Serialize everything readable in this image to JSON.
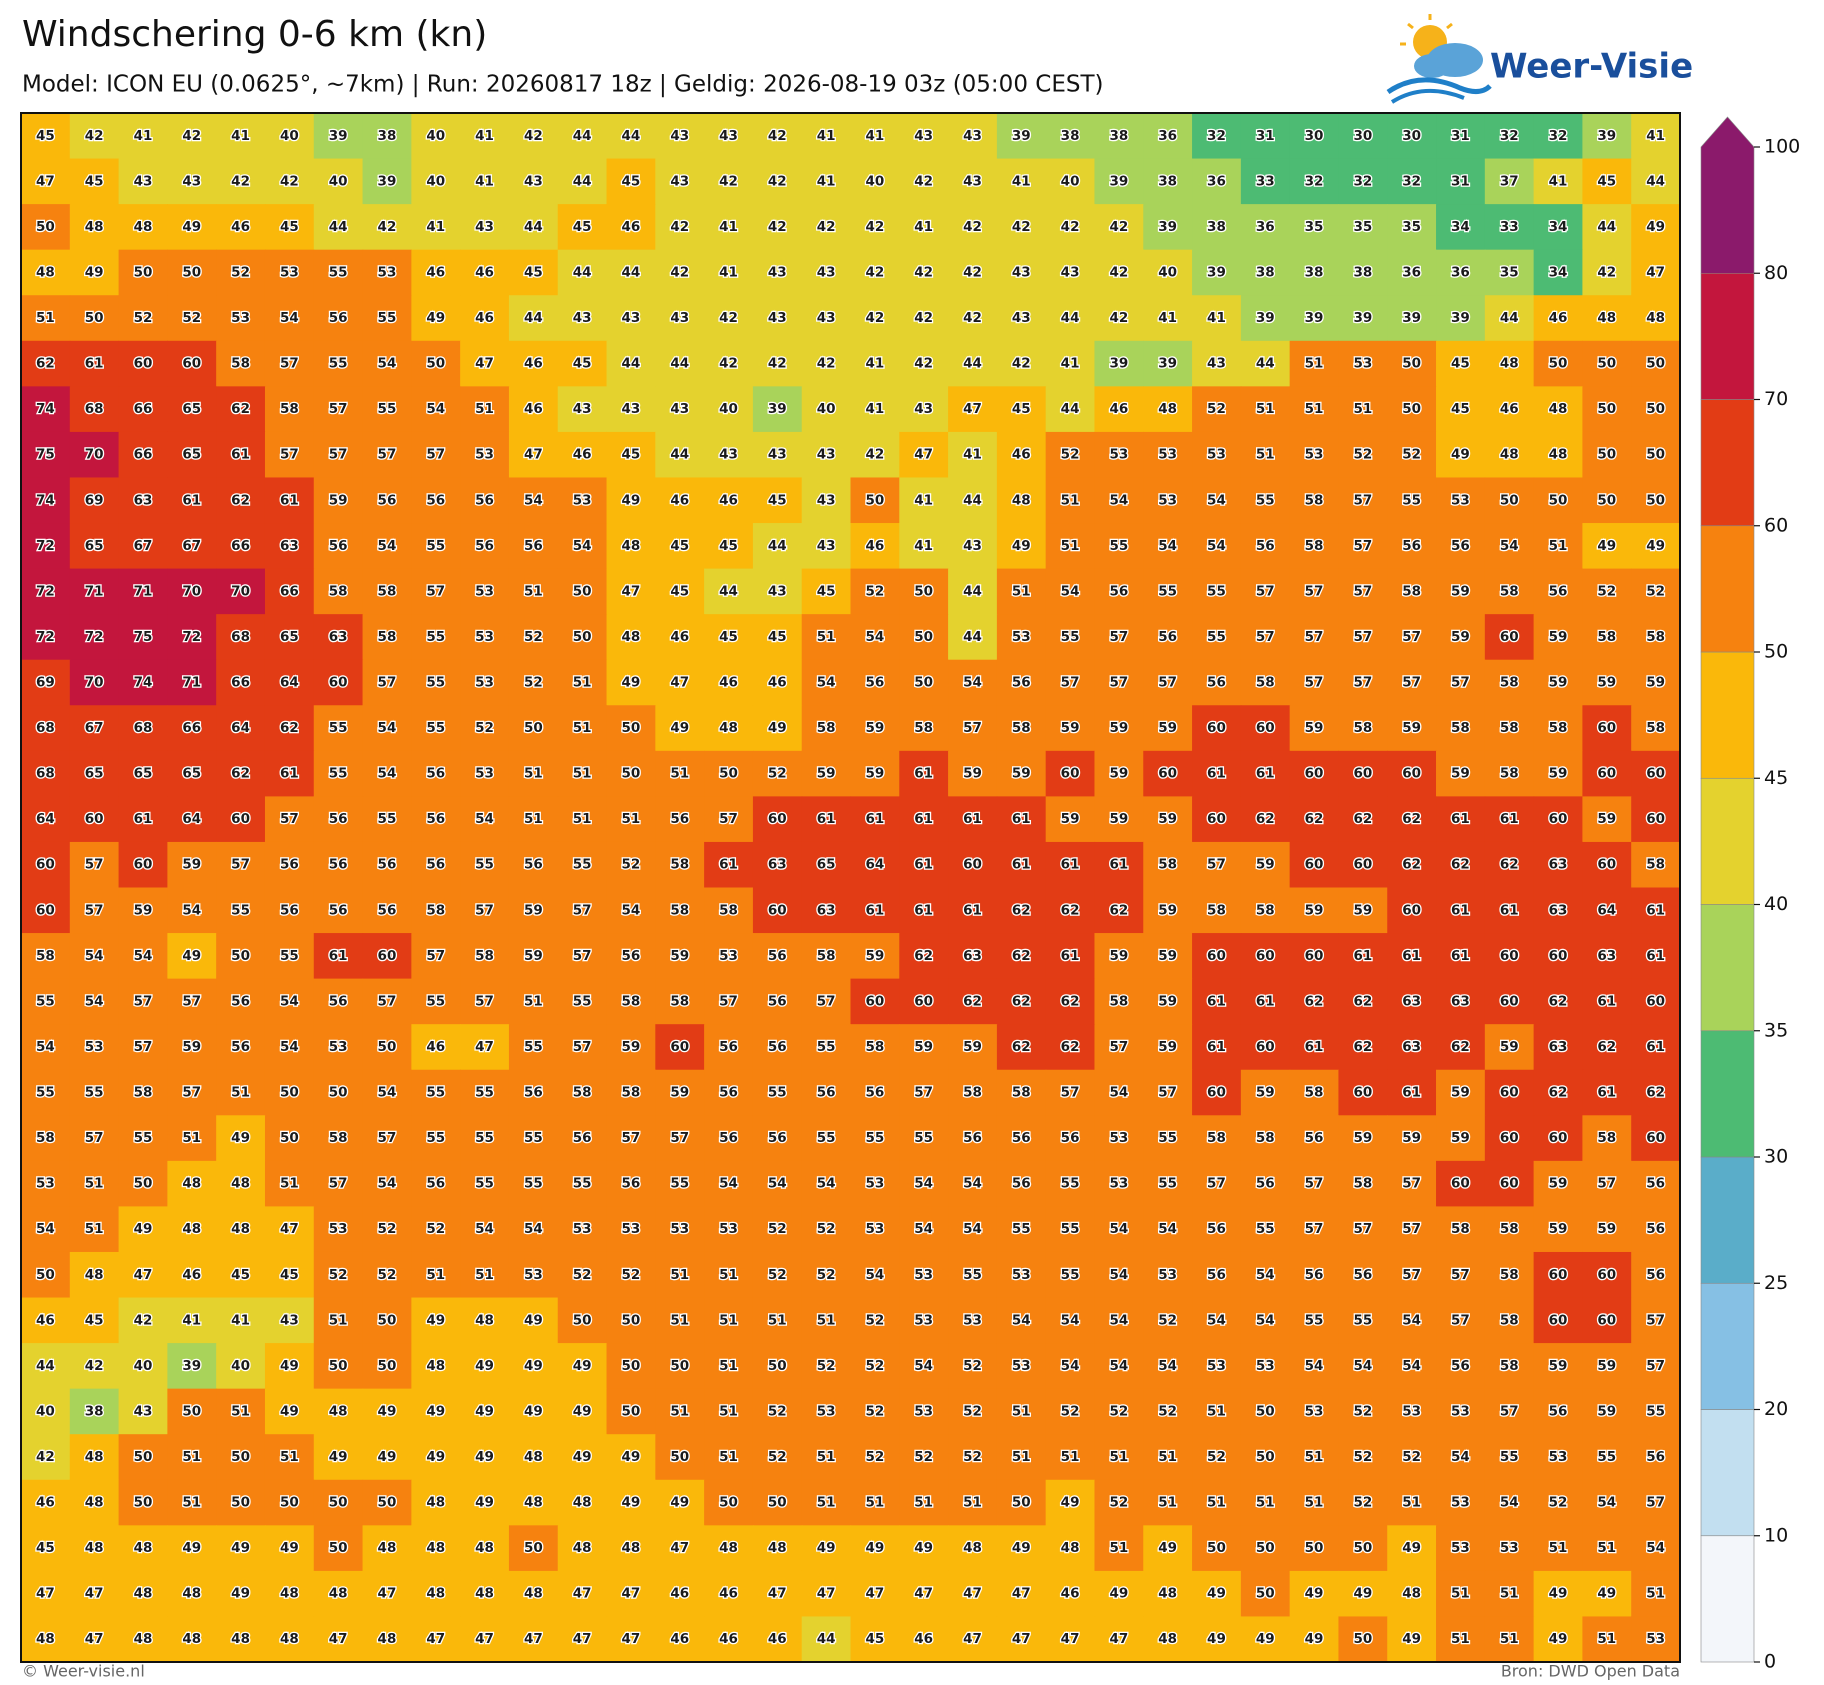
{
  "chart_data": {
    "type": "heatmap",
    "title": "Windschering 0-6 km (kn)",
    "subtitle": "Model: ICON EU (0.0625°, ~7km)  |  Run: 20260817 18z  |  Geldig: 2026-08-19 03z (05:00 CEST)",
    "logo_text": "Weer-Visie",
    "credit": "© Weer-visie.nl",
    "source": "Bron: DWD Open Data",
    "levels": [
      0,
      10,
      20,
      25,
      30,
      35,
      40,
      45,
      50,
      60,
      70,
      80,
      100
    ],
    "colors": [
      "#f3f6fa",
      "#c2dff0",
      "#86c0e4",
      "#5aadc9",
      "#4dbb73",
      "#a9d35a",
      "#e4d22e",
      "#fab80a",
      "#f6820f",
      "#e23c15",
      "#c3163d",
      "#8b1a6b"
    ],
    "values": [
      [
        45,
        42,
        41,
        42,
        41,
        40,
        39,
        38,
        40,
        41,
        42,
        44,
        44,
        43,
        43,
        42,
        41,
        41,
        43,
        43,
        39,
        38,
        38,
        36,
        32,
        31,
        30,
        30,
        30,
        31,
        32,
        32,
        39,
        41
      ],
      [
        47,
        45,
        43,
        43,
        42,
        42,
        40,
        39,
        40,
        41,
        43,
        44,
        45,
        43,
        42,
        42,
        41,
        40,
        42,
        43,
        41,
        40,
        39,
        38,
        36,
        33,
        32,
        32,
        32,
        31,
        37,
        41,
        45,
        44
      ],
      [
        50,
        48,
        48,
        49,
        46,
        45,
        44,
        42,
        41,
        43,
        44,
        45,
        46,
        42,
        41,
        42,
        42,
        42,
        41,
        42,
        42,
        42,
        42,
        39,
        38,
        36,
        35,
        35,
        35,
        34,
        33,
        34,
        44,
        49
      ],
      [
        48,
        49,
        50,
        50,
        52,
        53,
        55,
        53,
        46,
        46,
        45,
        44,
        44,
        42,
        41,
        43,
        43,
        42,
        42,
        42,
        43,
        43,
        42,
        40,
        39,
        38,
        38,
        38,
        36,
        36,
        35,
        34,
        42,
        47
      ],
      [
        51,
        50,
        52,
        52,
        53,
        54,
        56,
        55,
        49,
        46,
        44,
        43,
        43,
        43,
        42,
        43,
        43,
        42,
        42,
        42,
        43,
        44,
        42,
        41,
        41,
        39,
        39,
        39,
        39,
        39,
        44,
        46,
        48,
        48
      ],
      [
        62,
        61,
        60,
        60,
        58,
        57,
        55,
        54,
        50,
        47,
        46,
        45,
        44,
        44,
        42,
        42,
        42,
        41,
        42,
        44,
        42,
        41,
        39,
        39,
        43,
        44,
        51,
        53,
        50,
        45,
        48,
        50,
        50,
        50
      ],
      [
        74,
        68,
        66,
        65,
        62,
        58,
        57,
        55,
        54,
        51,
        46,
        43,
        43,
        43,
        40,
        39,
        40,
        41,
        43,
        47,
        45,
        44,
        46,
        48,
        52,
        51,
        51,
        51,
        50,
        45,
        46,
        48,
        50,
        50
      ],
      [
        75,
        70,
        66,
        65,
        61,
        57,
        57,
        57,
        57,
        53,
        47,
        46,
        45,
        44,
        43,
        43,
        43,
        42,
        47,
        41,
        46,
        52,
        53,
        53,
        53,
        51,
        53,
        52,
        52,
        49,
        48,
        48,
        50,
        50
      ],
      [
        74,
        69,
        63,
        61,
        62,
        61,
        59,
        56,
        56,
        56,
        54,
        53,
        49,
        46,
        46,
        45,
        43,
        50,
        41,
        44,
        48,
        51,
        54,
        53,
        54,
        55,
        58,
        57,
        55,
        53,
        50,
        50,
        50,
        50
      ],
      [
        72,
        65,
        67,
        67,
        66,
        63,
        56,
        54,
        55,
        56,
        56,
        54,
        48,
        45,
        45,
        44,
        43,
        46,
        41,
        43,
        49,
        51,
        55,
        54,
        54,
        56,
        58,
        57,
        56,
        56,
        54,
        51,
        49,
        49
      ],
      [
        72,
        71,
        71,
        70,
        70,
        66,
        58,
        58,
        57,
        53,
        51,
        50,
        47,
        45,
        44,
        43,
        45,
        52,
        50,
        44,
        51,
        54,
        56,
        55,
        55,
        57,
        57,
        57,
        58,
        59,
        58,
        56,
        52,
        52
      ],
      [
        72,
        72,
        75,
        72,
        68,
        65,
        63,
        58,
        55,
        53,
        52,
        50,
        48,
        46,
        45,
        45,
        51,
        54,
        50,
        44,
        53,
        55,
        57,
        56,
        55,
        57,
        57,
        57,
        57,
        59,
        60,
        59,
        58,
        58
      ],
      [
        69,
        70,
        74,
        71,
        66,
        64,
        60,
        57,
        55,
        53,
        52,
        51,
        49,
        47,
        46,
        46,
        54,
        56,
        50,
        54,
        56,
        57,
        57,
        57,
        56,
        58,
        57,
        57,
        57,
        57,
        58,
        59,
        59,
        59
      ],
      [
        68,
        67,
        68,
        66,
        64,
        62,
        55,
        54,
        55,
        52,
        50,
        51,
        50,
        49,
        48,
        49,
        58,
        59,
        58,
        57,
        58,
        59,
        59,
        59,
        60,
        60,
        59,
        58,
        59,
        58,
        58,
        58,
        60,
        58
      ],
      [
        68,
        65,
        65,
        65,
        62,
        61,
        55,
        54,
        56,
        53,
        51,
        51,
        50,
        51,
        50,
        52,
        59,
        59,
        61,
        59,
        59,
        60,
        59,
        60,
        61,
        61,
        60,
        60,
        60,
        59,
        58,
        59,
        60,
        60
      ],
      [
        64,
        60,
        61,
        64,
        60,
        57,
        56,
        55,
        56,
        54,
        51,
        51,
        51,
        56,
        57,
        60,
        61,
        61,
        61,
        61,
        61,
        59,
        59,
        59,
        60,
        62,
        62,
        62,
        62,
        61,
        61,
        60,
        59,
        60
      ],
      [
        60,
        57,
        60,
        59,
        57,
        56,
        56,
        56,
        56,
        55,
        56,
        55,
        52,
        58,
        61,
        63,
        65,
        64,
        61,
        60,
        61,
        61,
        61,
        58,
        57,
        59,
        60,
        60,
        62,
        62,
        62,
        63,
        60,
        58
      ],
      [
        60,
        57,
        59,
        54,
        55,
        56,
        56,
        56,
        58,
        57,
        59,
        57,
        54,
        58,
        58,
        60,
        63,
        61,
        61,
        61,
        62,
        62,
        62,
        59,
        58,
        58,
        59,
        59,
        60,
        61,
        61,
        63,
        64,
        61
      ],
      [
        58,
        54,
        54,
        49,
        50,
        55,
        61,
        60,
        57,
        58,
        59,
        57,
        56,
        59,
        53,
        56,
        58,
        59,
        62,
        63,
        62,
        61,
        59,
        59,
        60,
        60,
        60,
        61,
        61,
        61,
        60,
        60,
        63,
        61
      ],
      [
        55,
        54,
        57,
        57,
        56,
        54,
        56,
        57,
        55,
        57,
        51,
        55,
        58,
        58,
        57,
        56,
        57,
        60,
        60,
        62,
        62,
        62,
        58,
        59,
        61,
        61,
        62,
        62,
        63,
        63,
        60,
        62,
        61,
        60
      ],
      [
        54,
        53,
        57,
        59,
        56,
        54,
        53,
        50,
        46,
        47,
        55,
        57,
        59,
        60,
        56,
        56,
        55,
        58,
        59,
        59,
        62,
        62,
        57,
        59,
        61,
        60,
        61,
        62,
        63,
        62,
        59,
        63,
        62,
        61
      ],
      [
        55,
        55,
        58,
        57,
        51,
        50,
        50,
        54,
        55,
        55,
        56,
        58,
        58,
        59,
        56,
        55,
        56,
        56,
        57,
        58,
        58,
        57,
        54,
        57,
        60,
        59,
        58,
        60,
        61,
        59,
        60,
        62,
        61,
        62
      ],
      [
        58,
        57,
        55,
        51,
        49,
        50,
        58,
        57,
        55,
        55,
        55,
        56,
        57,
        57,
        56,
        56,
        55,
        55,
        55,
        56,
        56,
        56,
        53,
        55,
        58,
        58,
        56,
        59,
        59,
        59,
        60,
        60,
        58,
        60
      ],
      [
        53,
        51,
        50,
        48,
        48,
        51,
        57,
        54,
        56,
        55,
        55,
        55,
        56,
        55,
        54,
        54,
        54,
        53,
        54,
        54,
        56,
        55,
        53,
        55,
        57,
        56,
        57,
        58,
        57,
        60,
        60,
        59,
        57,
        56
      ],
      [
        54,
        51,
        49,
        48,
        48,
        47,
        53,
        52,
        52,
        54,
        54,
        53,
        53,
        53,
        53,
        52,
        52,
        53,
        54,
        54,
        55,
        55,
        54,
        54,
        56,
        55,
        57,
        57,
        57,
        58,
        58,
        59,
        59,
        56
      ],
      [
        50,
        48,
        47,
        46,
        45,
        45,
        52,
        52,
        51,
        51,
        53,
        52,
        52,
        51,
        51,
        52,
        52,
        54,
        53,
        55,
        53,
        55,
        54,
        53,
        56,
        54,
        56,
        56,
        57,
        57,
        58,
        60,
        60,
        56
      ],
      [
        46,
        45,
        42,
        41,
        41,
        43,
        51,
        50,
        49,
        48,
        49,
        50,
        50,
        51,
        51,
        51,
        51,
        52,
        53,
        53,
        54,
        54,
        54,
        52,
        54,
        54,
        55,
        55,
        54,
        57,
        58,
        60,
        60,
        57
      ],
      [
        44,
        42,
        40,
        39,
        40,
        49,
        50,
        50,
        48,
        49,
        49,
        49,
        50,
        50,
        51,
        50,
        52,
        52,
        54,
        52,
        53,
        54,
        54,
        54,
        53,
        53,
        54,
        54,
        54,
        56,
        58,
        59,
        59,
        57
      ],
      [
        40,
        38,
        43,
        50,
        51,
        49,
        48,
        49,
        49,
        49,
        49,
        49,
        50,
        51,
        51,
        52,
        53,
        52,
        53,
        52,
        51,
        52,
        52,
        52,
        51,
        50,
        53,
        52,
        53,
        53,
        57,
        56,
        59,
        55
      ],
      [
        42,
        48,
        50,
        51,
        50,
        51,
        49,
        49,
        49,
        49,
        48,
        49,
        49,
        50,
        51,
        52,
        51,
        52,
        52,
        52,
        51,
        51,
        51,
        51,
        52,
        50,
        51,
        52,
        52,
        54,
        55,
        53,
        55,
        56
      ],
      [
        46,
        48,
        50,
        51,
        50,
        50,
        50,
        50,
        48,
        49,
        48,
        48,
        49,
        49,
        50,
        50,
        51,
        51,
        51,
        51,
        50,
        49,
        52,
        51,
        51,
        51,
        51,
        52,
        51,
        53,
        54,
        52,
        54,
        57
      ],
      [
        45,
        48,
        48,
        49,
        49,
        49,
        50,
        48,
        48,
        48,
        50,
        48,
        48,
        47,
        48,
        48,
        49,
        49,
        49,
        48,
        49,
        48,
        51,
        49,
        50,
        50,
        50,
        50,
        49,
        53,
        53,
        51,
        51,
        54
      ],
      [
        47,
        47,
        48,
        48,
        49,
        48,
        48,
        47,
        48,
        48,
        48,
        47,
        47,
        46,
        46,
        47,
        47,
        47,
        47,
        47,
        47,
        46,
        49,
        48,
        49,
        50,
        49,
        49,
        48,
        51,
        51,
        49,
        49,
        51
      ],
      [
        48,
        47,
        48,
        48,
        48,
        48,
        47,
        48,
        47,
        47,
        47,
        47,
        47,
        46,
        46,
        46,
        44,
        45,
        46,
        47,
        47,
        47,
        47,
        48,
        49,
        49,
        49,
        50,
        49,
        51,
        51,
        49,
        51,
        53
      ]
    ]
  }
}
